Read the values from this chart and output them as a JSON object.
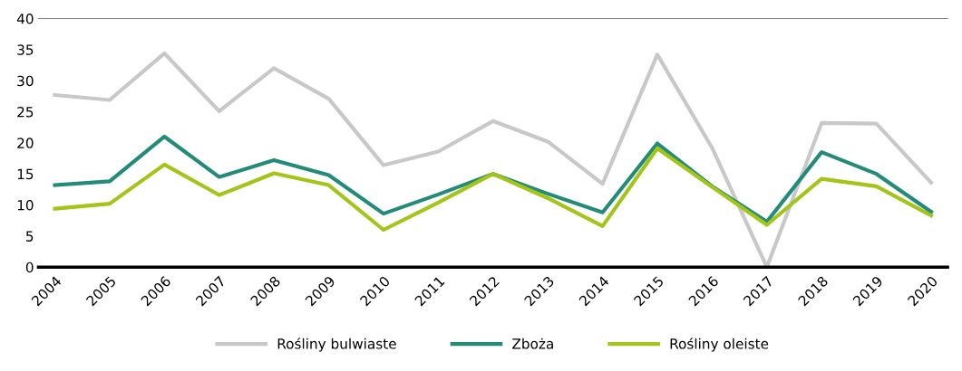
{
  "chart_data": {
    "type": "line",
    "categories": [
      "2004",
      "2005",
      "2006",
      "2007",
      "2008",
      "2009",
      "2010",
      "2011",
      "2012",
      "2013",
      "2014",
      "2015",
      "2016",
      "2017",
      "2018",
      "2019",
      "2020"
    ],
    "series": [
      {
        "name": "Rośliny bulwiaste",
        "color": "#c8c8c8",
        "values": [
          27.7,
          26.9,
          34.4,
          25.1,
          32,
          27.1,
          16.4,
          18.6,
          23.5,
          20.2,
          13.4,
          34.2,
          19.2,
          0,
          23.2,
          23.1,
          13.6
        ]
      },
      {
        "name": "Zboża",
        "color": "#238b78",
        "values": [
          13.2,
          13.8,
          21,
          14.5,
          17.2,
          14.8,
          8.6,
          11.7,
          15,
          11.8,
          8.8,
          19.9,
          13,
          7.3,
          18.5,
          15,
          8.9
        ]
      },
      {
        "name": "Rośliny oleiste",
        "color": "#a4c41a",
        "values": [
          9.4,
          10.2,
          16.5,
          11.6,
          15.1,
          13.2,
          6,
          10.4,
          15,
          11.1,
          6.6,
          19.1,
          12.9,
          6.8,
          14.2,
          13,
          8.3
        ]
      }
    ],
    "ylim": [
      0,
      40
    ],
    "yticks": [
      0,
      5,
      10,
      15,
      20,
      25,
      30,
      35,
      40
    ],
    "legend": "bottom",
    "grid": false,
    "marker": "none",
    "line_style": "solid"
  }
}
